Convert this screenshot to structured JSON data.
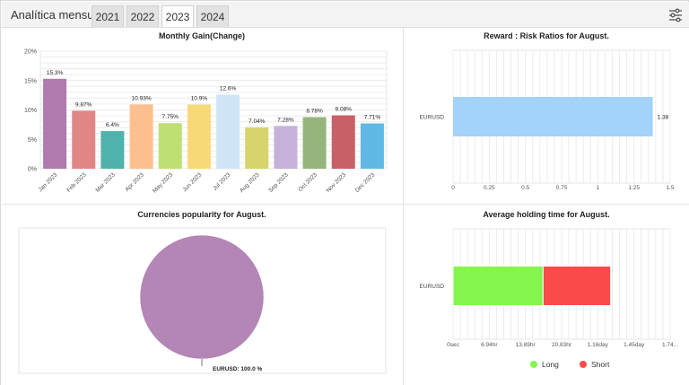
{
  "header": {
    "title": "Analítica mensual",
    "tabs": [
      {
        "label": "2021",
        "active": false
      },
      {
        "label": "2022",
        "active": false
      },
      {
        "label": "2023",
        "active": true
      },
      {
        "label": "2024",
        "active": false
      }
    ],
    "settings_icon": "sliders-settings-icon"
  },
  "panels": {
    "monthly_title": "Monthly Gain(Change)",
    "reward_title": "Reward : Risk Ratios for August.",
    "currencies_title": "Currencies popularity for August.",
    "holding_title": "Average holding time for August."
  },
  "chart_data": [
    {
      "id": "monthly",
      "type": "bar",
      "title": "Monthly Gain(Change)",
      "categories": [
        "Jan 2023",
        "Feb 2023",
        "Mar 2023",
        "Apr 2023",
        "May 2023",
        "Jun 2023",
        "Jul 2023",
        "Aug 2023",
        "Sep 2023",
        "Oct 2023",
        "Nov 2023",
        "Dec 2023"
      ],
      "values": [
        15.3,
        9.87,
        6.4,
        10.93,
        7.75,
        10.9,
        12.6,
        7.04,
        7.28,
        8.78,
        9.08,
        7.71
      ],
      "value_labels": [
        "15.3%",
        "9.87%",
        "6.4%",
        "10.93%",
        "7.75%",
        "10.9%",
        "12.6%",
        "7.04%",
        "7.28%",
        "8.78%",
        "9.08%",
        "7.71%"
      ],
      "colors": [
        "#b07aae",
        "#e08684",
        "#4fb3ad",
        "#fdbf8e",
        "#bedf73",
        "#f7d979",
        "#cfe5f8",
        "#d6d46c",
        "#c6b2d8",
        "#96b57b",
        "#c86068",
        "#60b8e5"
      ],
      "yticks": [
        "0%",
        "5%",
        "10%",
        "15%",
        "20%"
      ],
      "ylim": [
        0,
        20
      ],
      "grid": true
    },
    {
      "id": "reward",
      "type": "bar",
      "orientation": "horizontal",
      "title": "Reward : Risk Ratios for August.",
      "categories": [
        "EURUSD"
      ],
      "values": [
        1.38
      ],
      "value_labels": [
        "1.38"
      ],
      "colors": [
        "#a3d3f8"
      ],
      "xticks": [
        "0",
        "0.25",
        "0.5",
        "0.75",
        "1",
        "1.25",
        "1.5"
      ],
      "xlim": [
        0,
        1.5
      ],
      "grid": true
    },
    {
      "id": "currencies",
      "type": "pie",
      "title": "Currencies popularity for August.",
      "labels": [
        "EURUSD"
      ],
      "values": [
        100.0
      ],
      "slice_labels": [
        "EURUSD: 100.0 %"
      ],
      "colors": [
        "#b386b5"
      ]
    },
    {
      "id": "holding",
      "type": "bar",
      "orientation": "horizontal",
      "stacked": true,
      "title": "Average holding time for August.",
      "categories": [
        "EURUSD"
      ],
      "series": [
        {
          "name": "Long",
          "values": [
            0.72
          ],
          "color": "#84f54e"
        },
        {
          "name": "Short",
          "values": [
            0.54
          ],
          "color": "#fb4a4a"
        }
      ],
      "x_unit": "days",
      "xticks": [
        "0sec",
        "6.94hr",
        "13.89hr",
        "20.83hr",
        "1.16day",
        "1.45day",
        "1.74..."
      ],
      "xlim": [
        0,
        1.7361
      ],
      "legend_position": "bottom",
      "grid": true
    }
  ]
}
